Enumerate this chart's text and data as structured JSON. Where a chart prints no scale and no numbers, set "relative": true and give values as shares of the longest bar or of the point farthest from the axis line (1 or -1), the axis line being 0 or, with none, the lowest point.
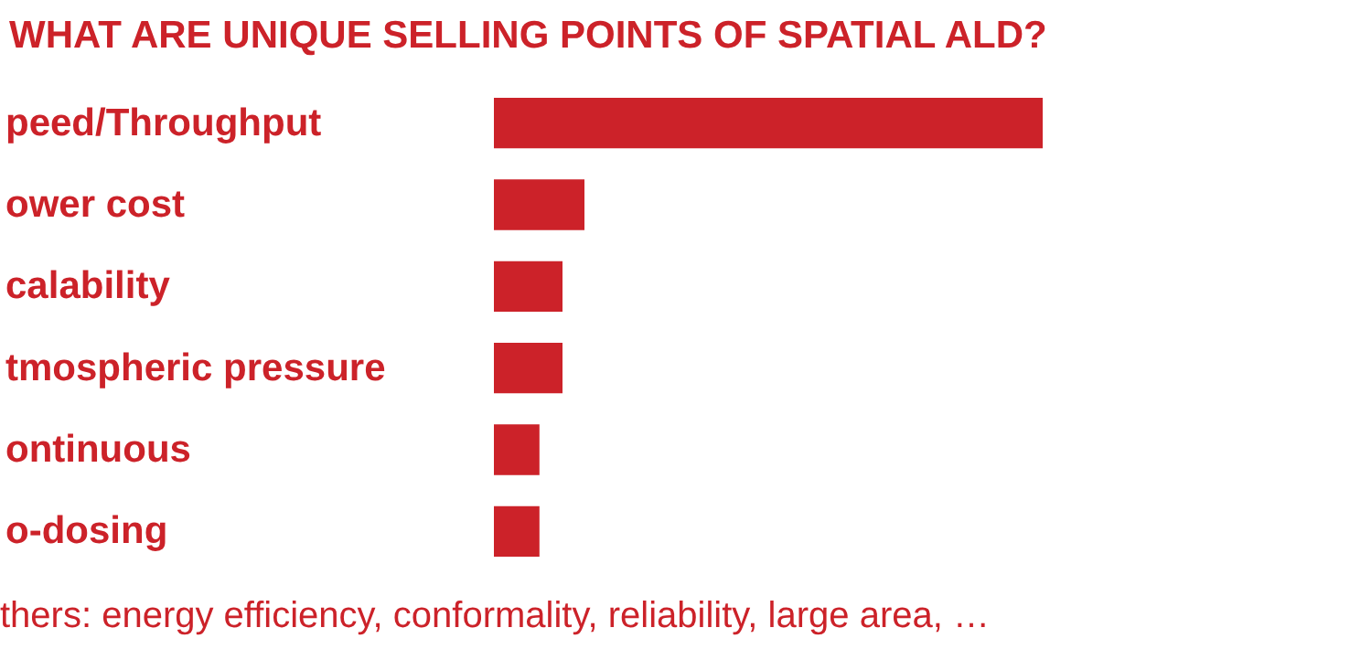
{
  "chart_data": {
    "type": "bar",
    "orientation": "horizontal",
    "relative": true,
    "title": "WHAT ARE UNIQUE SELLING POINTS OF SPATIAL ALD?",
    "categories": [
      "peed/Throughput",
      "ower cost",
      "calability",
      "tmospheric pressure",
      "ontinuous",
      "o-dosing"
    ],
    "values": [
      1,
      0.165,
      0.125,
      0.125,
      0.083,
      0.083
    ],
    "color": "#cc2229",
    "annotations": [
      "thers: energy efficiency, conformality, reliability, large area, …"
    ]
  }
}
